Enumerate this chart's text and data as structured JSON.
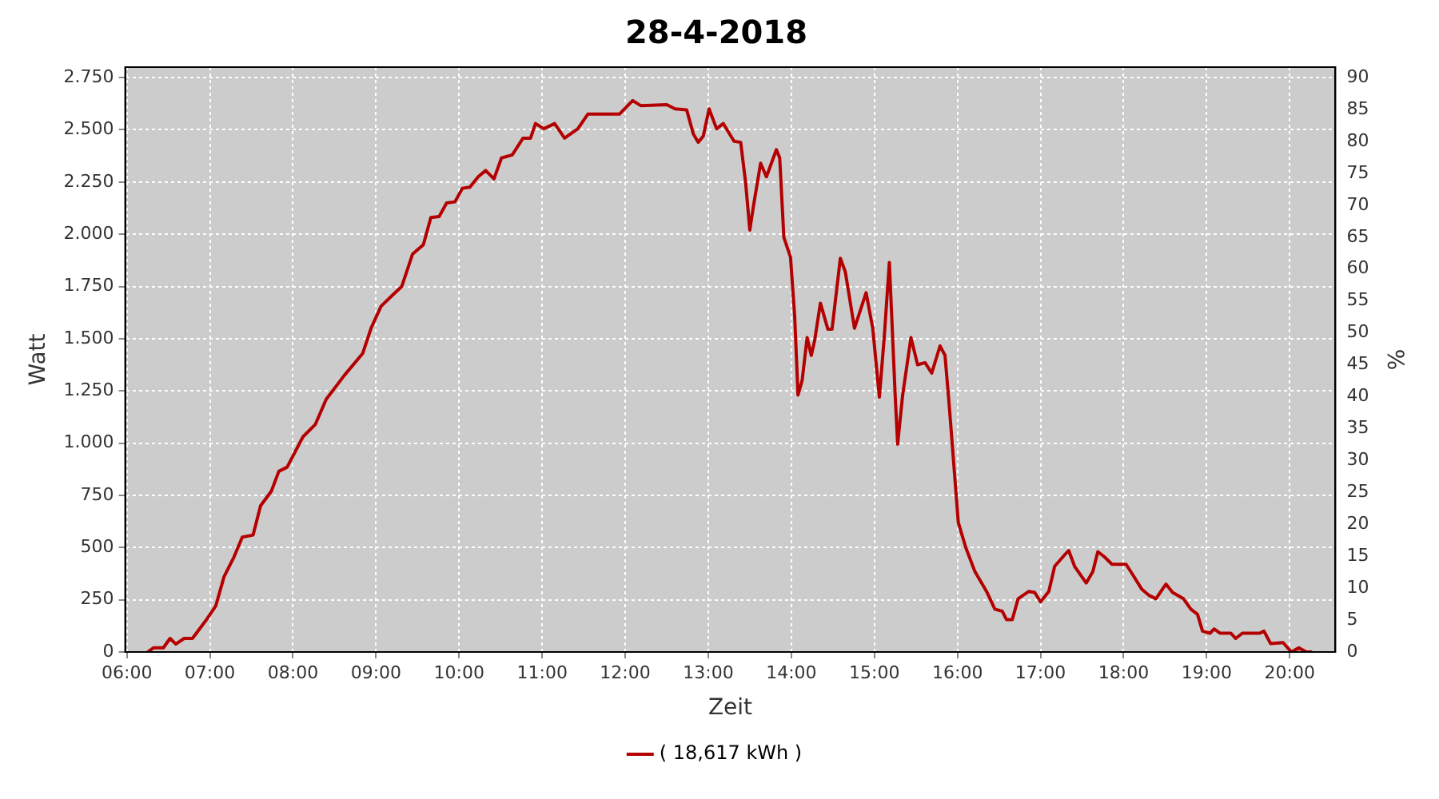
{
  "chart_data": {
    "type": "line",
    "title": "28-4-2018",
    "xlabel": "Zeit",
    "ylabel": "Watt",
    "y2label": "%",
    "x": [
      6.25,
      6.32,
      6.44,
      6.52,
      6.59,
      6.69,
      6.79,
      6.95,
      7.07,
      7.17,
      7.29,
      7.39,
      7.52,
      7.61,
      7.74,
      7.83,
      7.93,
      8.12,
      8.27,
      8.4,
      8.62,
      8.84,
      8.94,
      9.06,
      9.19,
      9.31,
      9.44,
      9.57,
      9.66,
      9.76,
      9.85,
      9.95,
      10.04,
      10.13,
      10.23,
      10.32,
      10.42,
      10.51,
      10.64,
      10.77,
      10.86,
      10.92,
      11.02,
      11.15,
      11.27,
      11.43,
      11.55,
      11.93,
      12.09,
      12.19,
      12.5,
      12.6,
      12.74,
      12.82,
      12.88,
      12.94,
      13.01,
      13.1,
      13.18,
      13.31,
      13.39,
      13.45,
      13.5,
      13.54,
      13.63,
      13.7,
      13.82,
      13.86,
      13.91,
      13.99,
      14.04,
      14.08,
      14.13,
      14.19,
      14.24,
      14.28,
      14.35,
      14.44,
      14.49,
      14.59,
      14.65,
      14.76,
      14.9,
      14.98,
      15.06,
      15.12,
      15.18,
      15.25,
      15.28,
      15.34,
      15.44,
      15.52,
      15.61,
      15.69,
      15.79,
      15.85,
      15.9,
      16.01,
      16.1,
      16.21,
      16.35,
      16.45,
      16.54,
      16.59,
      16.66,
      16.73,
      16.86,
      16.93,
      17.0,
      17.1,
      17.17,
      17.29,
      17.34,
      17.41,
      17.55,
      17.63,
      17.69,
      17.77,
      17.86,
      18.03,
      18.11,
      18.22,
      18.31,
      18.39,
      18.45,
      18.51,
      18.59,
      18.72,
      18.81,
      18.89,
      18.95,
      19.04,
      19.09,
      19.16,
      19.29,
      19.35,
      19.43,
      19.64,
      19.69,
      19.77,
      19.92,
      20.02,
      20.11,
      20.2,
      20.27
    ],
    "series": [
      {
        "name": "( 18,617 kWh )",
        "color": "#b40000",
        "values": [
          0,
          20,
          20,
          65,
          38,
          65,
          65,
          150,
          220,
          360,
          455,
          550,
          560,
          700,
          770,
          865,
          885,
          1030,
          1090,
          1210,
          1325,
          1430,
          1550,
          1655,
          1705,
          1750,
          1905,
          1950,
          2080,
          2085,
          2150,
          2155,
          2220,
          2225,
          2275,
          2305,
          2265,
          2365,
          2380,
          2460,
          2460,
          2530,
          2505,
          2530,
          2460,
          2505,
          2575,
          2575,
          2640,
          2615,
          2620,
          2600,
          2595,
          2480,
          2440,
          2470,
          2600,
          2505,
          2530,
          2445,
          2440,
          2245,
          2020,
          2125,
          2340,
          2275,
          2405,
          2365,
          1985,
          1890,
          1610,
          1230,
          1300,
          1505,
          1420,
          1490,
          1670,
          1545,
          1545,
          1885,
          1820,
          1550,
          1720,
          1550,
          1220,
          1515,
          1865,
          1230,
          995,
          1230,
          1505,
          1375,
          1385,
          1335,
          1465,
          1420,
          1185,
          620,
          500,
          385,
          290,
          205,
          195,
          155,
          155,
          255,
          290,
          285,
          240,
          290,
          410,
          465,
          485,
          410,
          330,
          385,
          480,
          455,
          420,
          420,
          370,
          300,
          270,
          255,
          290,
          325,
          285,
          255,
          205,
          180,
          100,
          90,
          110,
          90,
          90,
          65,
          90,
          90,
          100,
          40,
          45,
          0,
          20,
          0,
          0
        ]
      }
    ],
    "xlim": [
      5.98,
      20.55
    ],
    "xticks": [
      {
        "value": 6,
        "label": "06:00"
      },
      {
        "value": 7,
        "label": "07:00"
      },
      {
        "value": 8,
        "label": "08:00"
      },
      {
        "value": 9,
        "label": "09:00"
      },
      {
        "value": 10,
        "label": "10:00"
      },
      {
        "value": 11,
        "label": "11:00"
      },
      {
        "value": 12,
        "label": "12:00"
      },
      {
        "value": 13,
        "label": "13:00"
      },
      {
        "value": 14,
        "label": "14:00"
      },
      {
        "value": 15,
        "label": "15:00"
      },
      {
        "value": 16,
        "label": "16:00"
      },
      {
        "value": 17,
        "label": "17:00"
      },
      {
        "value": 18,
        "label": "18:00"
      },
      {
        "value": 19,
        "label": "19:00"
      },
      {
        "value": 20,
        "label": "20:00"
      }
    ],
    "ylim": [
      0,
      2800
    ],
    "yticks": [
      0,
      250,
      500,
      750,
      {
        "value": 1000,
        "label": "1.000"
      },
      {
        "value": 1250,
        "label": "1.250"
      },
      {
        "value": 1500,
        "label": "1.500"
      },
      {
        "value": 1750,
        "label": "1.750"
      },
      {
        "value": 2000,
        "label": "2.000"
      },
      {
        "value": 2250,
        "label": "2.250"
      },
      {
        "value": 2500,
        "label": "2.500"
      },
      {
        "value": 2750,
        "label": "2.750"
      }
    ],
    "y2lim": [
      0,
      91.64
    ],
    "y2ticks": [
      0,
      5,
      10,
      15,
      20,
      25,
      30,
      35,
      40,
      45,
      50,
      55,
      60,
      65,
      70,
      75,
      80,
      85,
      90
    ],
    "grid": true,
    "legend": "bottom"
  }
}
